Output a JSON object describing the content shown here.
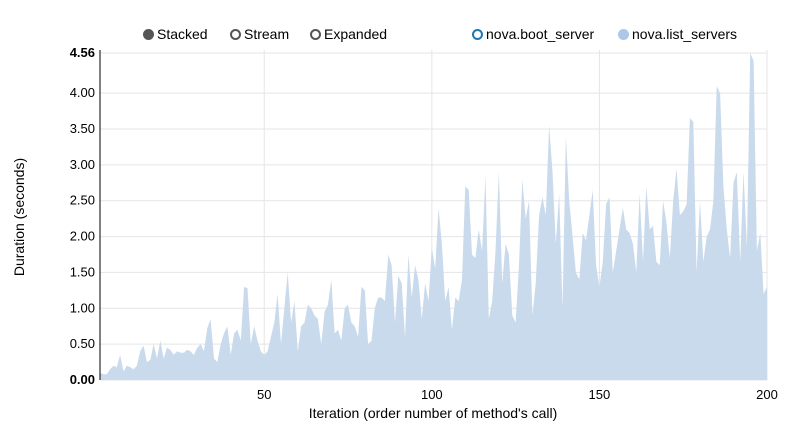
{
  "controls": {
    "stacked": "Stacked",
    "stream": "Stream",
    "expanded": "Expanded",
    "selected": "Stacked"
  },
  "chart_data": {
    "type": "area",
    "xlabel": "Iteration (order number of method's call)",
    "ylabel": "Duration (seconds)",
    "xlim": [
      1,
      200
    ],
    "ylim": [
      0,
      4.56
    ],
    "x_ticks": [
      "50",
      "100",
      "150",
      "200"
    ],
    "y_ticks": [
      "0.00",
      "0.50",
      "1.00",
      "1.50",
      "2.00",
      "2.50",
      "3.00",
      "3.50",
      "4.00",
      "4.56"
    ],
    "grid": true,
    "legend_position": "top-right",
    "series": [
      {
        "name": "nova.boot_server",
        "color": "#1f77b4",
        "disabled": true,
        "values": []
      },
      {
        "name": "nova.list_servers",
        "color": "#aec7e8",
        "values": [
          0.1,
          0.08,
          0.08,
          0.15,
          0.2,
          0.18,
          0.35,
          0.12,
          0.2,
          0.18,
          0.15,
          0.2,
          0.4,
          0.48,
          0.25,
          0.28,
          0.5,
          0.3,
          0.55,
          0.3,
          0.45,
          0.42,
          0.35,
          0.4,
          0.38,
          0.38,
          0.42,
          0.4,
          0.35,
          0.45,
          0.5,
          0.4,
          0.72,
          0.85,
          0.3,
          0.25,
          0.5,
          0.65,
          0.75,
          0.35,
          0.65,
          0.7,
          0.55,
          1.3,
          1.28,
          0.5,
          0.75,
          0.55,
          0.4,
          0.35,
          0.4,
          0.6,
          0.8,
          1.2,
          0.5,
          1.0,
          1.5,
          0.8,
          1.1,
          0.4,
          0.75,
          0.8,
          1.05,
          1.0,
          0.9,
          0.85,
          0.5,
          0.95,
          1.05,
          1.4,
          0.65,
          0.7,
          0.55,
          1.0,
          1.05,
          0.8,
          0.75,
          0.6,
          1.3,
          1.25,
          0.5,
          0.55,
          1.0,
          1.15,
          1.15,
          1.1,
          1.75,
          1.6,
          0.8,
          1.45,
          1.35,
          0.6,
          1.75,
          1.15,
          1.6,
          1.4,
          0.85,
          1.35,
          1.1,
          1.85,
          1.55,
          2.4,
          1.9,
          1.1,
          1.3,
          0.7,
          1.15,
          1.1,
          1.4,
          2.7,
          2.65,
          1.75,
          1.7,
          2.1,
          1.8,
          2.85,
          0.85,
          1.1,
          1.8,
          2.9,
          1.35,
          1.9,
          1.75,
          0.9,
          0.8,
          1.6,
          2.8,
          2.25,
          2.5,
          0.9,
          1.35,
          2.3,
          2.55,
          2.3,
          3.55,
          2.9,
          1.9,
          2.6,
          1.0,
          3.4,
          2.5,
          2.0,
          1.5,
          1.4,
          2.05,
          1.95,
          2.3,
          2.65,
          1.6,
          1.3,
          1.65,
          2.45,
          2.55,
          1.5,
          1.8,
          2.1,
          2.4,
          2.1,
          2.05,
          1.9,
          1.5,
          2.6,
          1.65,
          2.7,
          2.1,
          2.15,
          1.65,
          1.6,
          2.5,
          2.2,
          1.7,
          2.5,
          2.95,
          2.3,
          2.35,
          2.45,
          3.65,
          3.6,
          1.5,
          2.5,
          1.65,
          2.0,
          2.1,
          2.5,
          4.1,
          4.0,
          2.7,
          2.1,
          1.7,
          2.75,
          2.9,
          1.65,
          2.9,
          1.85,
          4.56,
          4.45,
          1.8,
          2.05,
          1.2,
          1.3
        ]
      }
    ]
  }
}
